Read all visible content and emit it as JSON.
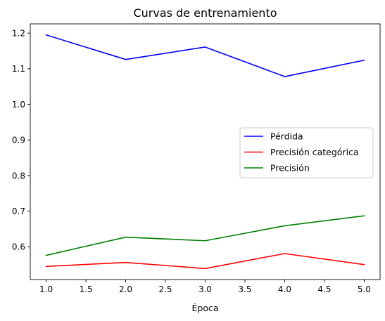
{
  "chart_data": {
    "type": "line",
    "title": "Curvas de entrenamiento",
    "xlabel": "Época",
    "ylabel": "",
    "x": [
      1,
      2,
      3,
      4,
      5
    ],
    "xlim": [
      0.8,
      5.2
    ],
    "ylim": [
      0.508,
      1.226
    ],
    "xticks": [
      1.0,
      1.5,
      2.0,
      2.5,
      3.0,
      3.5,
      4.0,
      4.5,
      5.0
    ],
    "xtick_labels": [
      "1.0",
      "1.5",
      "2.0",
      "2.5",
      "3.0",
      "3.5",
      "4.0",
      "4.5",
      "5.0"
    ],
    "yticks": [
      0.6,
      0.7,
      0.8,
      0.9,
      1.0,
      1.1,
      1.2
    ],
    "ytick_labels": [
      "0.6",
      "0.7",
      "0.8",
      "0.9",
      "1.0",
      "1.1",
      "1.2"
    ],
    "grid": false,
    "legend_position": "center-right",
    "series": [
      {
        "name": "Pérdida",
        "color": "#0000ff",
        "values": [
          1.195,
          1.126,
          1.161,
          1.078,
          1.124
        ]
      },
      {
        "name": "Precisión categórica",
        "color": "#ff0000",
        "values": [
          0.545,
          0.556,
          0.539,
          0.581,
          0.55
        ]
      },
      {
        "name": "Precisión",
        "color": "#008000",
        "values": [
          0.576,
          0.627,
          0.617,
          0.659,
          0.687
        ]
      }
    ]
  }
}
